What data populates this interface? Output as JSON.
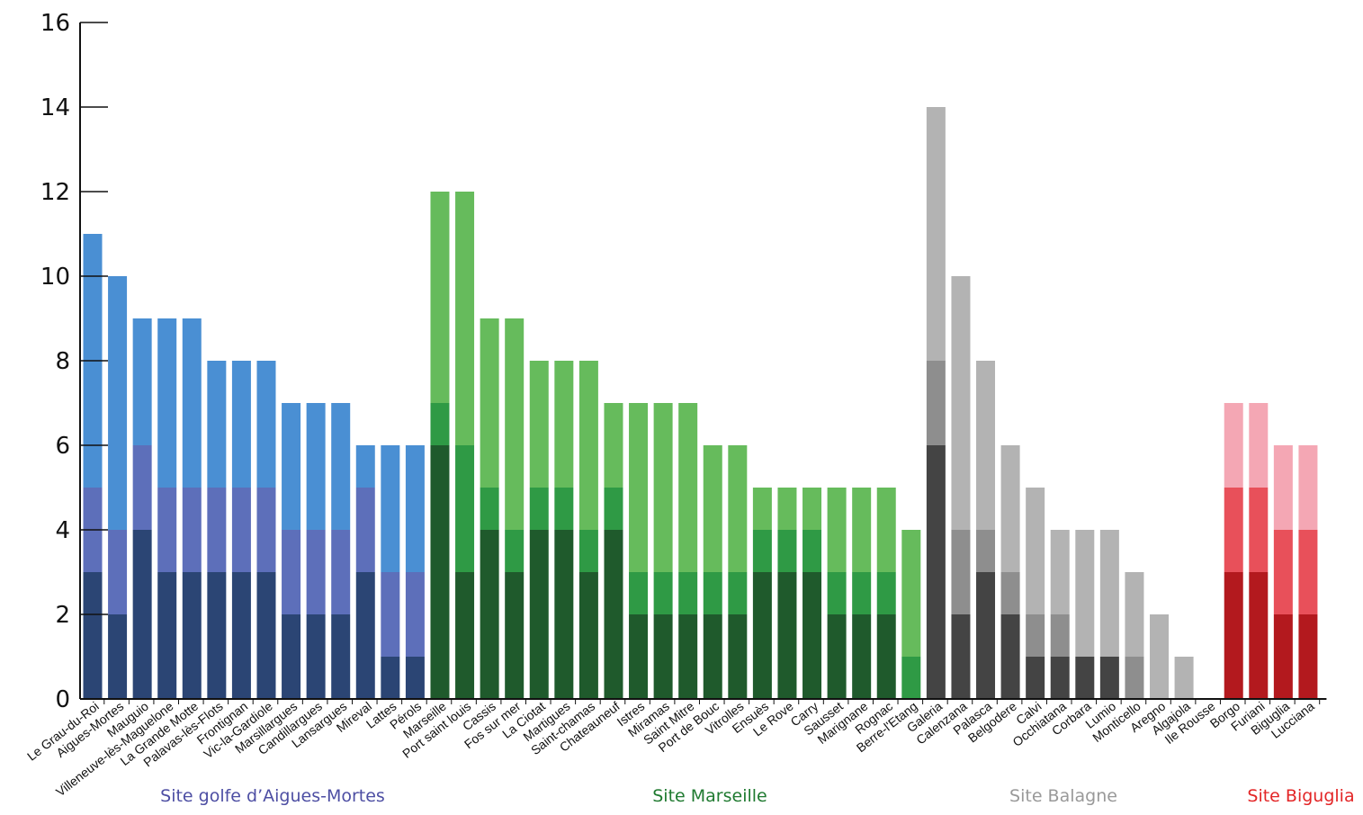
{
  "chart_data": {
    "type": "bar",
    "stacked": true,
    "ylim": [
      0,
      16
    ],
    "yticks": [
      "0",
      "2",
      "4",
      "6",
      "8",
      "10",
      "12",
      "14",
      "16"
    ],
    "grid": false,
    "groups": [
      {
        "name": "Site golfe d’Aigues-Mortes",
        "label_color": "#4d4ea3",
        "segment_colors": [
          "#2b4574",
          "#5d6fba",
          "#4a8fd3"
        ],
        "bars": [
          {
            "category": "Le Grau-du-Roi",
            "segments": [
              3,
              5,
              11
            ]
          },
          {
            "category": "Aigues-Mortes",
            "segments": [
              2,
              4,
              10
            ]
          },
          {
            "category": "Mauguio",
            "segments": [
              4,
              6,
              9
            ]
          },
          {
            "category": "Villeneuve-lès-Maguelone",
            "segments": [
              3,
              5,
              9
            ]
          },
          {
            "category": "La Grande Motte",
            "segments": [
              3,
              5,
              9
            ]
          },
          {
            "category": "Palavas-lès-Flots",
            "segments": [
              3,
              5,
              8
            ]
          },
          {
            "category": "Frontignan",
            "segments": [
              3,
              5,
              8
            ]
          },
          {
            "category": "Vic-la-Gardiole",
            "segments": [
              3,
              5,
              8
            ]
          },
          {
            "category": "Marsillargues",
            "segments": [
              2,
              4,
              7
            ]
          },
          {
            "category": "Candillargues",
            "segments": [
              2,
              4,
              7
            ]
          },
          {
            "category": "Lansargues",
            "segments": [
              2,
              4,
              7
            ]
          },
          {
            "category": "Mireval",
            "segments": [
              3,
              5,
              6
            ]
          },
          {
            "category": "Lattes",
            "segments": [
              1,
              3,
              6
            ]
          },
          {
            "category": "Pérols",
            "segments": [
              1,
              3,
              6
            ]
          }
        ]
      },
      {
        "name": "Site Marseille",
        "label_color": "#1f7a30",
        "segment_colors": [
          "#1f5a2c",
          "#2f9a45",
          "#66bb5c"
        ],
        "bars": [
          {
            "category": "Marseille",
            "segments": [
              6,
              7,
              12
            ]
          },
          {
            "category": "Port saint louis",
            "segments": [
              3,
              6,
              12
            ]
          },
          {
            "category": "Cassis",
            "segments": [
              4,
              5,
              9
            ]
          },
          {
            "category": "Fos sur mer",
            "segments": [
              3,
              4,
              9
            ]
          },
          {
            "category": "La Ciotat",
            "segments": [
              4,
              5,
              8
            ]
          },
          {
            "category": "Martigues",
            "segments": [
              4,
              5,
              8
            ]
          },
          {
            "category": "Saint-chamas",
            "segments": [
              3,
              4,
              8
            ]
          },
          {
            "category": "Chateauneuf",
            "segments": [
              4,
              5,
              7
            ]
          },
          {
            "category": "Istres",
            "segments": [
              2,
              3,
              7
            ]
          },
          {
            "category": "Miramas",
            "segments": [
              2,
              3,
              7
            ]
          },
          {
            "category": "Saint Mitre",
            "segments": [
              2,
              3,
              7
            ]
          },
          {
            "category": "Port de Bouc",
            "segments": [
              2,
              3,
              6
            ]
          },
          {
            "category": "Vitrolles",
            "segments": [
              2,
              3,
              6
            ]
          },
          {
            "category": "Ensuès",
            "segments": [
              3,
              4,
              5
            ]
          },
          {
            "category": "Le Rove",
            "segments": [
              3,
              4,
              5
            ]
          },
          {
            "category": "Carry",
            "segments": [
              3,
              4,
              5
            ]
          },
          {
            "category": "Sausset",
            "segments": [
              2,
              3,
              5
            ]
          },
          {
            "category": "Marignane",
            "segments": [
              2,
              3,
              5
            ]
          },
          {
            "category": "Rognac",
            "segments": [
              2,
              3,
              5
            ]
          },
          {
            "category": "Berre-l'Etang",
            "segments": [
              0,
              1,
              4
            ]
          }
        ]
      },
      {
        "name": "Site Balagne",
        "label_color": "#999999",
        "segment_colors": [
          "#444444",
          "#8e8e8e",
          "#b3b3b3"
        ],
        "bars": [
          {
            "category": "Galeria",
            "segments": [
              6,
              8,
              14
            ]
          },
          {
            "category": "Calenzana",
            "segments": [
              2,
              4,
              10
            ]
          },
          {
            "category": "Palasca",
            "segments": [
              3,
              4,
              8
            ]
          },
          {
            "category": "Belgodere",
            "segments": [
              2,
              3,
              6
            ]
          },
          {
            "category": "Calvi",
            "segments": [
              1,
              2,
              5
            ]
          },
          {
            "category": "Occhiatana",
            "segments": [
              1,
              2,
              4
            ]
          },
          {
            "category": "Corbara",
            "segments": [
              1,
              1,
              4
            ]
          },
          {
            "category": "Lumio",
            "segments": [
              1,
              1,
              4
            ]
          },
          {
            "category": "Monticello",
            "segments": [
              0,
              1,
              3
            ]
          },
          {
            "category": "Aregno",
            "segments": [
              0,
              0,
              2
            ]
          },
          {
            "category": "Algajola",
            "segments": [
              0,
              0,
              1
            ]
          },
          {
            "category": "Ile Rousse",
            "segments": [
              0,
              0,
              0
            ]
          }
        ]
      },
      {
        "name": "Site Biguglia",
        "label_color": "#e32526",
        "segment_colors": [
          "#b3191e",
          "#e8505a",
          "#f4a7b4"
        ],
        "bars": [
          {
            "category": "Borgo",
            "segments": [
              3,
              5,
              7
            ]
          },
          {
            "category": "Furiani",
            "segments": [
              3,
              5,
              7
            ]
          },
          {
            "category": "Biguglia",
            "segments": [
              2,
              4,
              6
            ]
          },
          {
            "category": "Lucciana",
            "segments": [
              2,
              4,
              6
            ]
          }
        ]
      }
    ]
  }
}
